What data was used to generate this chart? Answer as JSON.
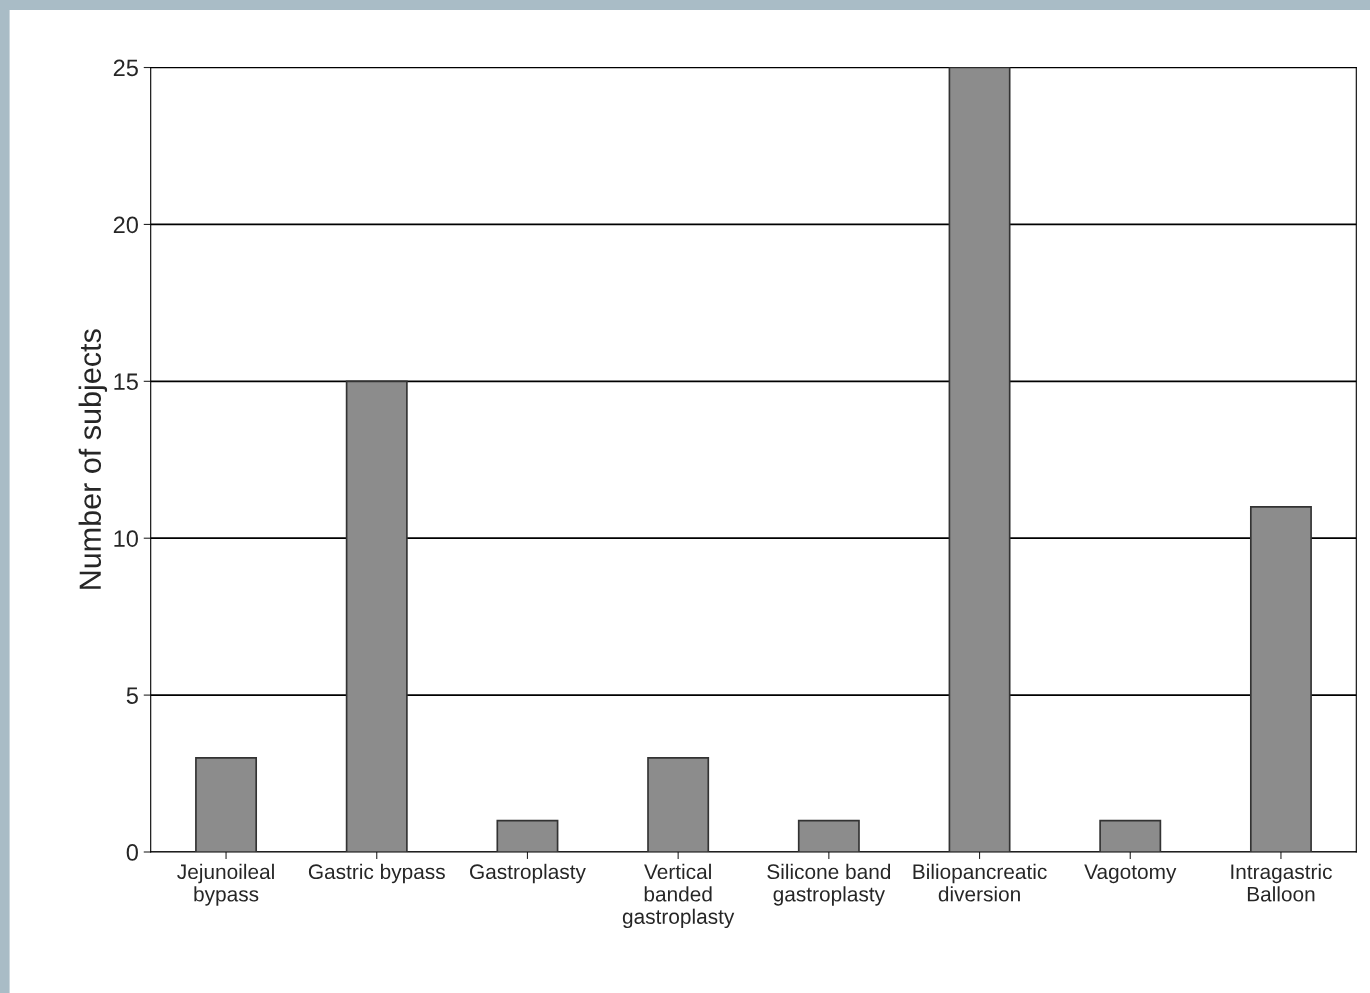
{
  "chart_data": {
    "type": "bar",
    "ylabel": "Number of subjects",
    "categories": [
      "Jejunoileal\nbypass",
      "Gastric bypass",
      "Gastroplasty",
      "Vertical\nbanded\ngastroplasty",
      "Silicone band\ngastroplasty",
      "Biliopancreatic\ndiversion",
      "Vagotomy",
      "Intragastric\nBalloon"
    ],
    "values": [
      3,
      15,
      1,
      3,
      1,
      25,
      1,
      11
    ],
    "color": "#8c8c8c",
    "ylim": [
      0,
      25
    ],
    "yticks": [
      0,
      5,
      10,
      15,
      20,
      25
    ],
    "grid": "y"
  }
}
